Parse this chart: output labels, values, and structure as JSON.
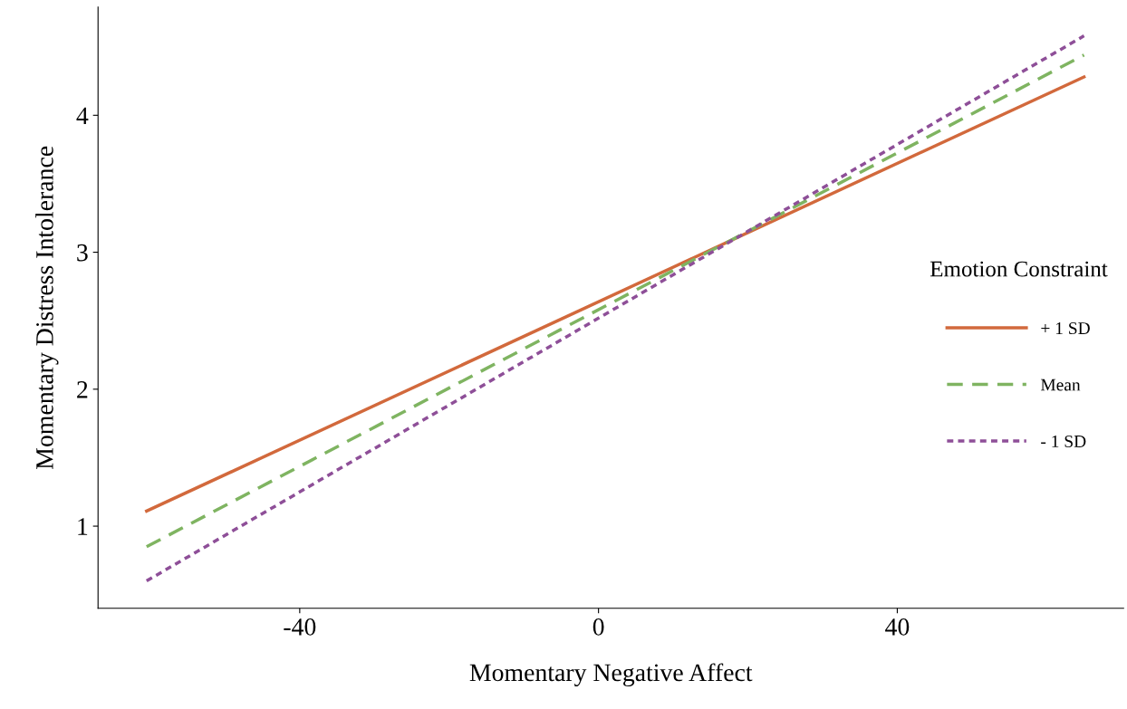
{
  "chart_data": {
    "type": "line",
    "xlabel": "Momentary Negative Affect",
    "ylabel": "Momentary Distress Intolerance",
    "legend_title": "Emotion Constraint",
    "legend": "right",
    "x": [
      -60.5,
      65
    ],
    "series": [
      {
        "name": "+ 1 SD",
        "color": "#d2693c",
        "line_style": "solid",
        "values": [
          1.11,
          4.28
        ]
      },
      {
        "name": "Mean",
        "color": "#7fb461",
        "line_style": "dashed",
        "values": [
          0.85,
          4.44
        ]
      },
      {
        "name": "- 1 SD",
        "color": "#8e4f98",
        "line_style": "dotted",
        "values": [
          0.6,
          4.58
        ]
      }
    ],
    "xlim": [
      -67,
      70.3
    ],
    "ylim": [
      0.4,
      4.79
    ],
    "xticks": [
      -40,
      0,
      40
    ],
    "yticks": [
      1,
      2,
      3,
      4
    ],
    "grid": false
  }
}
